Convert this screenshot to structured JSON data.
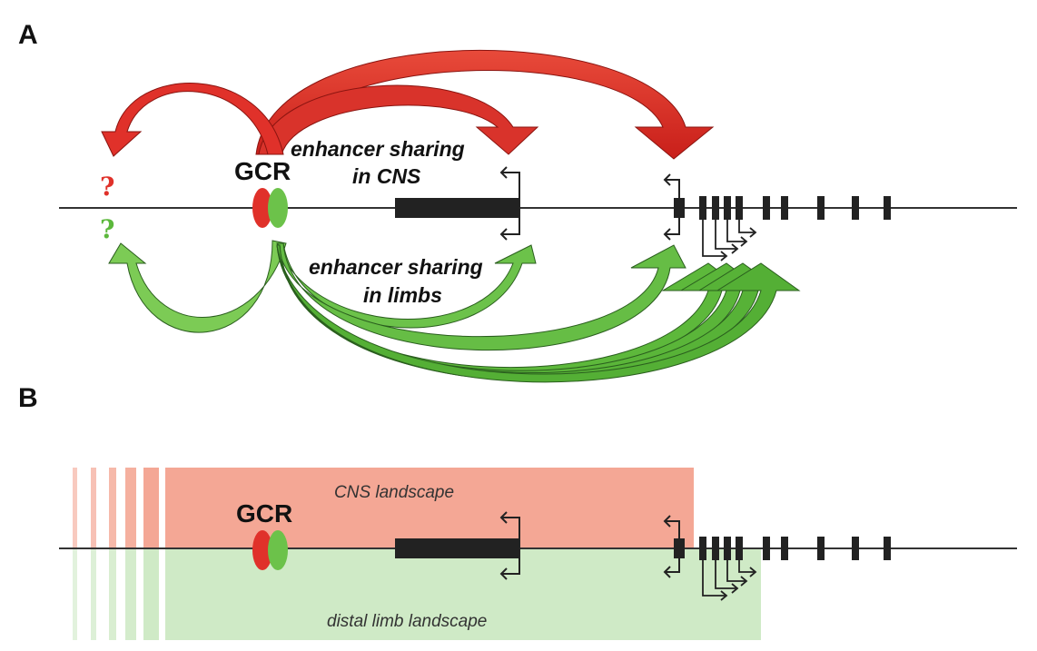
{
  "panel_a": {
    "label": "A",
    "element_label": "GCR",
    "question_top": "?",
    "question_bottom": "?",
    "cns_text_line1": "enhancer sharing",
    "cns_text_line2": "in CNS",
    "limb_text_line1": "enhancer sharing",
    "limb_text_line2": "in limbs"
  },
  "panel_b": {
    "label": "B",
    "element_label": "GCR",
    "cns_landscape": "CNS landscape",
    "limb_landscape": "distal limb landscape"
  },
  "colors": {
    "red": "#e0312a",
    "green": "#6cc24a",
    "cns_fill": "#f4a795",
    "limb_fill": "#cfeac6",
    "gene_block": "#222222"
  }
}
